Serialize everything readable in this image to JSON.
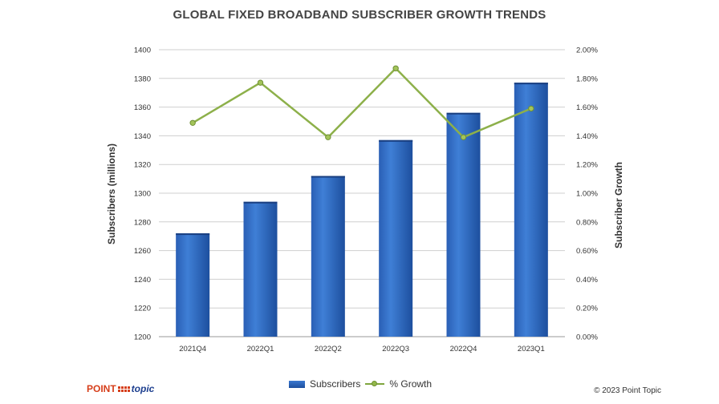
{
  "chart_data": {
    "type": "bar",
    "title": "GLOBAL FIXED BROADBAND SUBSCRIBER GROWTH TRENDS",
    "categories": [
      "2021Q4",
      "2022Q1",
      "2022Q2",
      "2022Q3",
      "2022Q4",
      "2023Q1"
    ],
    "series": [
      {
        "name": "Subscribers",
        "type": "bar",
        "axis": "left",
        "color": "#2e69c4",
        "values": [
          1272,
          1294,
          1312,
          1337,
          1356,
          1377
        ]
      },
      {
        "name": "% Growth",
        "type": "line",
        "axis": "right",
        "color": "#8db04a",
        "values": [
          1.49,
          1.77,
          1.39,
          1.87,
          1.39,
          1.59
        ]
      }
    ],
    "ylabel": "Subscribers (millions)",
    "y2label": "Subscriber Growth",
    "ylim": [
      1200,
      1400
    ],
    "y2lim": [
      0,
      2
    ],
    "yticks": [
      "1200",
      "1220",
      "1240",
      "1260",
      "1280",
      "1300",
      "1320",
      "1340",
      "1360",
      "1380",
      "1400"
    ],
    "y2ticks": [
      "0.00%",
      "0.20%",
      "0.40%",
      "0.60%",
      "0.80%",
      "1.00%",
      "1.20%",
      "1.40%",
      "1.60%",
      "1.80%",
      "2.00%"
    ],
    "grid": true,
    "legend": "bottom"
  },
  "branding": {
    "logo_word1": "POINT",
    "logo_word2": "topic",
    "copyright": "© 2023 Point Topic"
  }
}
